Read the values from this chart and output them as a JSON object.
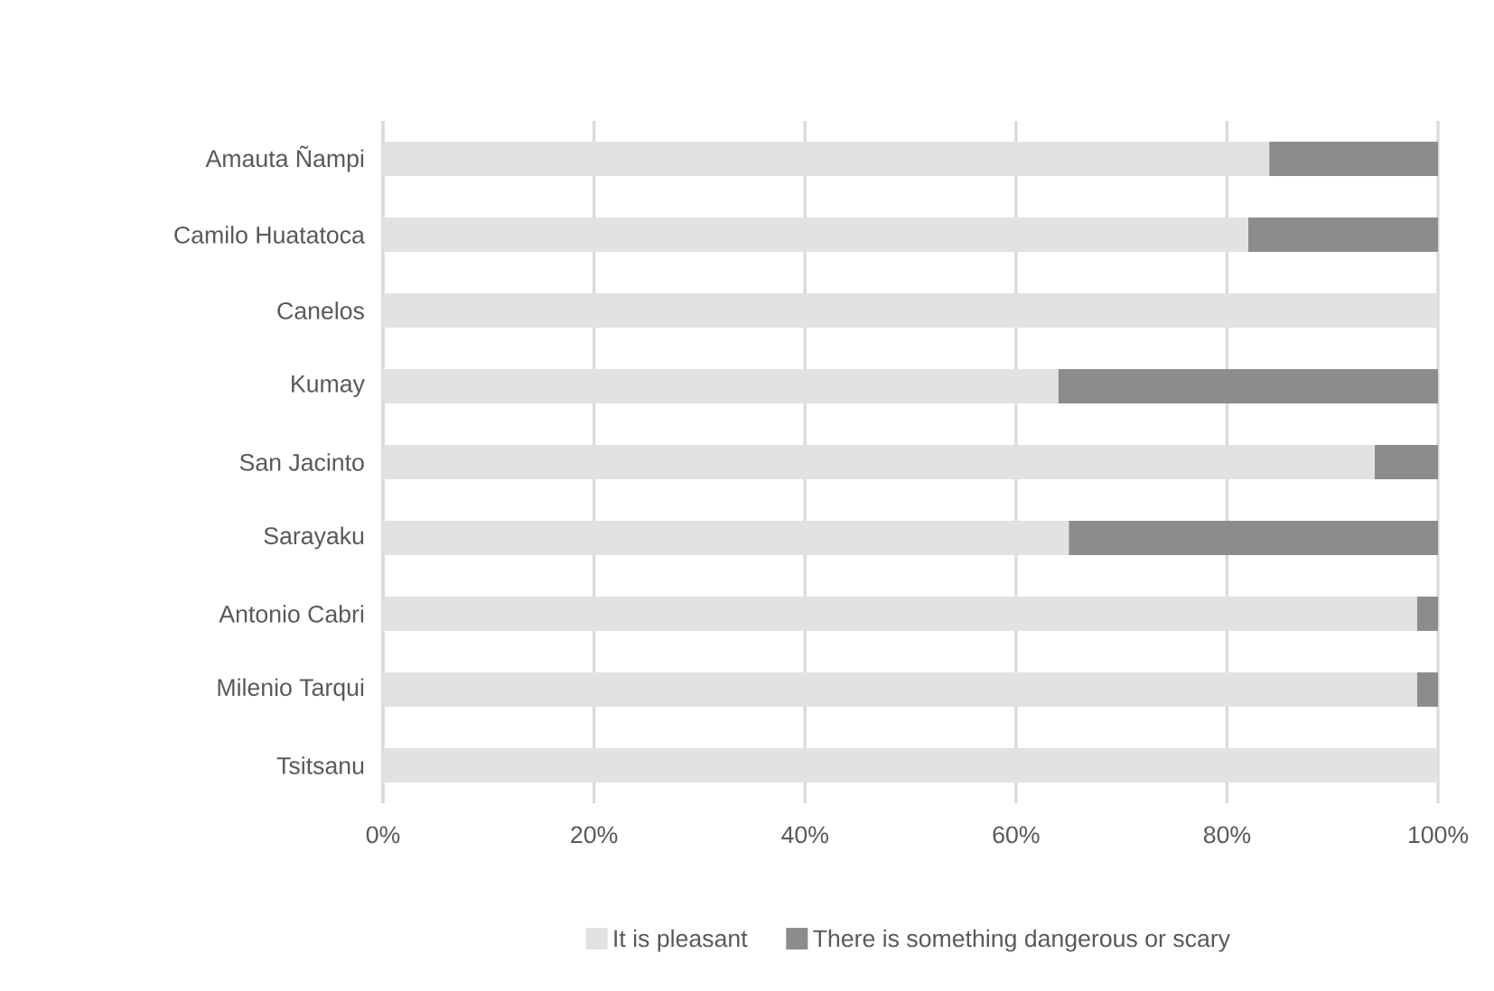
{
  "chart_data": {
    "type": "bar",
    "orientation": "horizontal",
    "stacked": true,
    "categories": [
      "Amauta Ñampi",
      "Camilo Huatatoca",
      "Canelos",
      "Kumay",
      "San Jacinto",
      "Sarayaku",
      "Antonio Cabri",
      "Milenio Tarqui",
      "Tsitsanu"
    ],
    "series": [
      {
        "name": "It is pleasant",
        "color": "#e2e2e2",
        "values": [
          84,
          82,
          100,
          64,
          94,
          65,
          98,
          98,
          100
        ]
      },
      {
        "name": "There is something dangerous or scary",
        "color": "#8c8c8c",
        "values": [
          16,
          18,
          0,
          36,
          6,
          35,
          2,
          2,
          0
        ]
      }
    ],
    "xlim": [
      0,
      100
    ],
    "xticks": [
      {
        "value": 0,
        "label": "0%"
      },
      {
        "value": 20,
        "label": "20%"
      },
      {
        "value": 40,
        "label": "40%"
      },
      {
        "value": 60,
        "label": "60%"
      },
      {
        "value": 80,
        "label": "80%"
      },
      {
        "value": 100,
        "label": "100%"
      }
    ],
    "grid": "x",
    "legend": "bottom"
  }
}
